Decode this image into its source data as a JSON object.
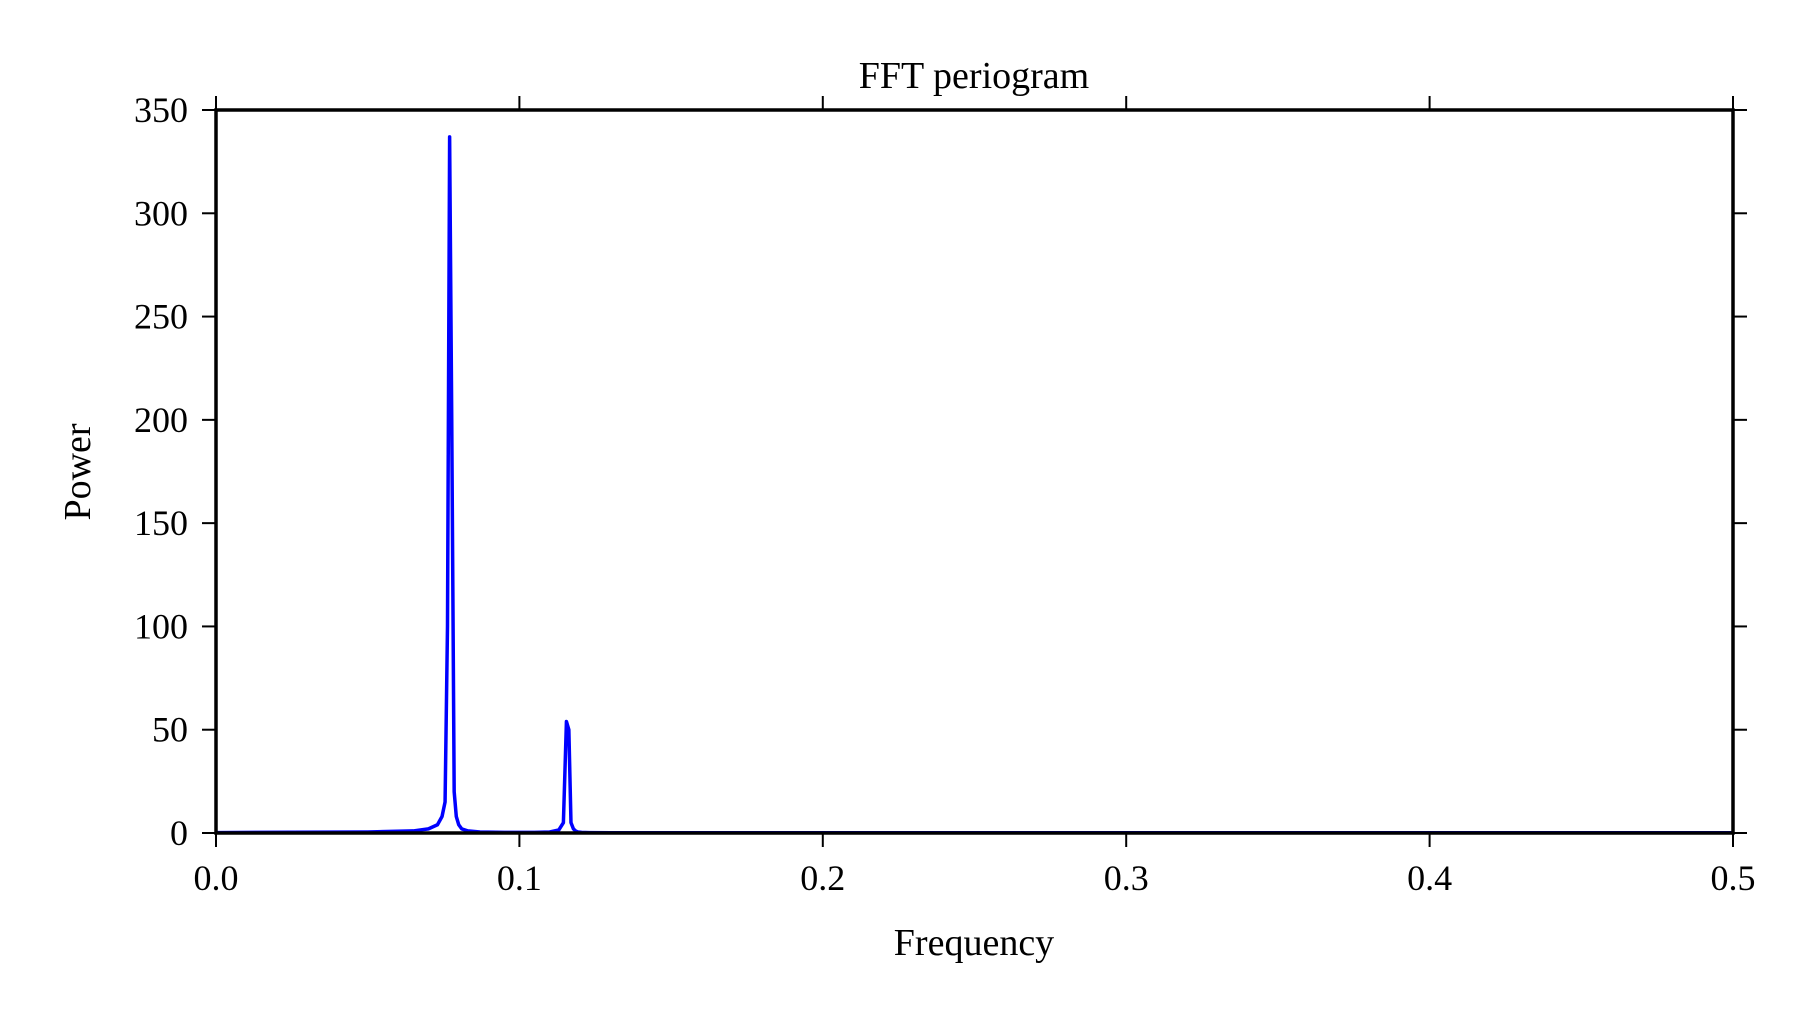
{
  "chart_data": {
    "type": "line",
    "title": "FFT periogram",
    "xlabel": "Frequency",
    "ylabel": "Power",
    "xlim": [
      0.0,
      0.5
    ],
    "ylim": [
      0,
      350
    ],
    "x_ticks": [
      0.0,
      0.1,
      0.2,
      0.3,
      0.4,
      0.5
    ],
    "x_tick_labels": [
      "0.0",
      "0.1",
      "0.2",
      "0.3",
      "0.4",
      "0.5"
    ],
    "y_ticks": [
      0,
      50,
      100,
      150,
      200,
      250,
      300,
      350
    ],
    "y_tick_labels": [
      "0",
      "50",
      "100",
      "150",
      "200",
      "250",
      "300",
      "350"
    ],
    "grid": false,
    "series": [
      {
        "color": "#0000ff",
        "x": [
          0.0,
          0.05,
          0.065,
          0.07,
          0.073,
          0.0745,
          0.0755,
          0.0763,
          0.077,
          0.0777,
          0.0785,
          0.0792,
          0.08,
          0.081,
          0.083,
          0.087,
          0.095,
          0.105,
          0.11,
          0.113,
          0.1145,
          0.1155,
          0.1163,
          0.117,
          0.1178,
          0.1185,
          0.1193,
          0.1205,
          0.123,
          0.13,
          0.15,
          0.2,
          0.3,
          0.4,
          0.5
        ],
        "y": [
          0.2,
          0.5,
          1.0,
          2.0,
          4.0,
          8.0,
          15.0,
          100.0,
          337.0,
          200.0,
          20.0,
          8.0,
          4.0,
          2.0,
          1.0,
          0.5,
          0.3,
          0.3,
          0.5,
          1.5,
          5.0,
          54.0,
          50.0,
          5.0,
          2.0,
          1.0,
          0.5,
          0.3,
          0.2,
          0.1,
          0.1,
          0.1,
          0.1,
          0.1,
          0.1
        ]
      }
    ]
  }
}
